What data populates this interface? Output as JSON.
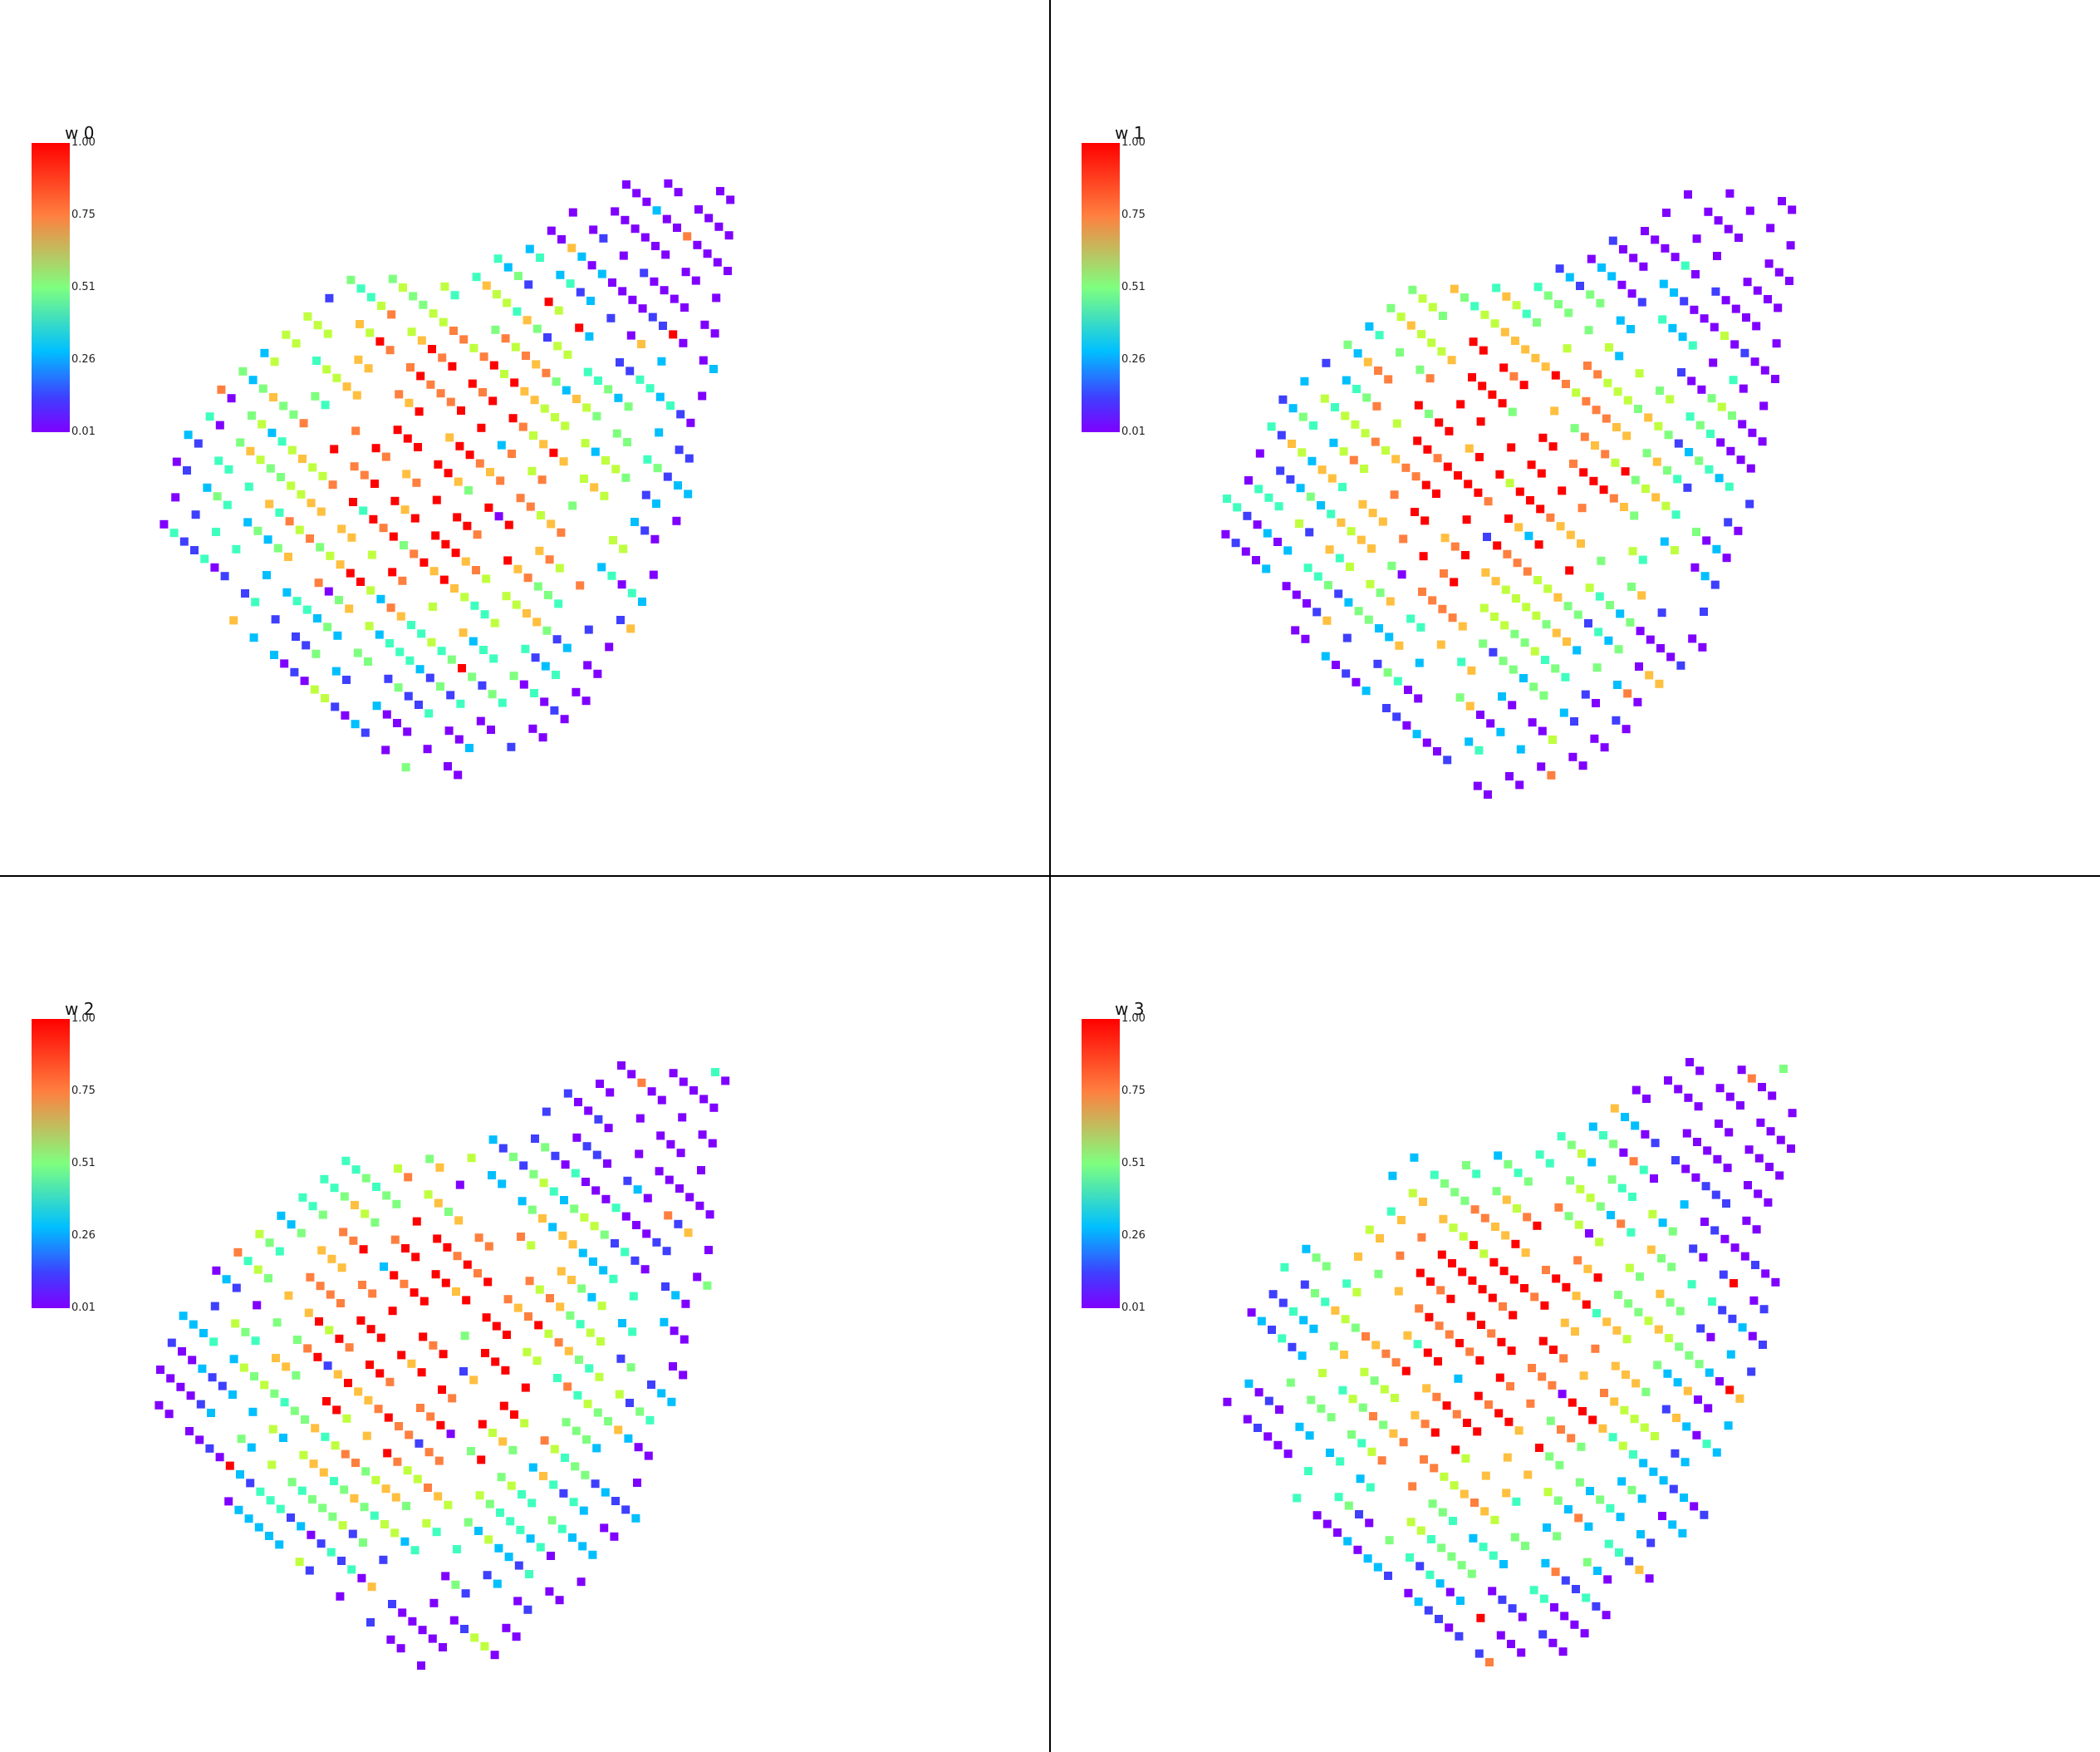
{
  "viewports": [
    {
      "title": "w 0",
      "ticks": [
        "1.00",
        "0.75",
        "0.51",
        "0.26",
        "0.01"
      ]
    },
    {
      "title": "w 1",
      "ticks": [
        "1.00",
        "0.75",
        "0.51",
        "0.26",
        "0.01"
      ]
    },
    {
      "title": "w 2",
      "ticks": [
        "1.00",
        "0.75",
        "0.51",
        "0.26",
        "0.01"
      ]
    },
    {
      "title": "w 3",
      "ticks": [
        "1.00",
        "0.75",
        "0.51",
        "0.26",
        "0.01"
      ]
    }
  ],
  "colormap": [
    "#7f00ff",
    "#3f3fff",
    "#00bfff",
    "#3fffbf",
    "#7fff7f",
    "#bfff3f",
    "#ffbf3f",
    "#ff7f3f",
    "#ff0000"
  ]
}
